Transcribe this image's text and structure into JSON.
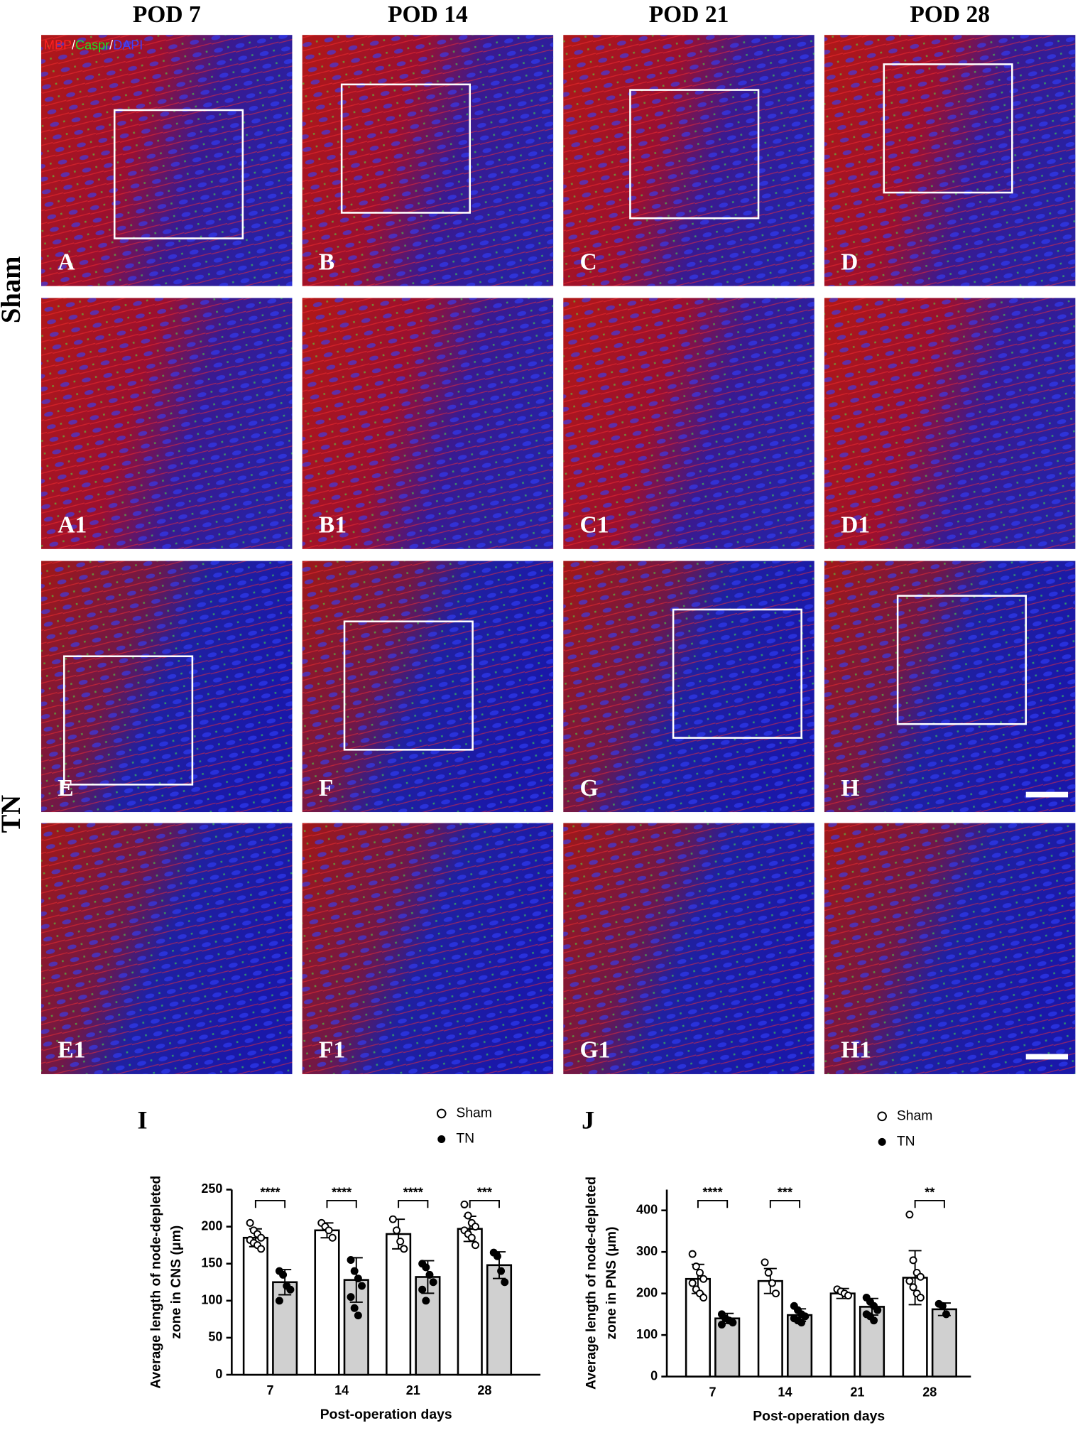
{
  "figure": {
    "column_headers": [
      "POD 7",
      "POD 14",
      "POD 21",
      "POD 28"
    ],
    "row_labels": [
      "Sham",
      "TN"
    ],
    "stain_labels": [
      "MBP",
      "/",
      "Caspr",
      "/",
      "DAPI"
    ],
    "stain_colors": [
      "#ff2020",
      "#ffffff",
      "#20e020",
      "#ffffff",
      "#4040ff"
    ],
    "panel_labels": [
      [
        "A",
        "B",
        "C",
        "D"
      ],
      [
        "A1",
        "B1",
        "C1",
        "D1"
      ],
      [
        "E",
        "F",
        "G",
        "H"
      ],
      [
        "E1",
        "F1",
        "G1",
        "H1"
      ]
    ]
  },
  "chart_data": [
    {
      "type": "bar",
      "panel": "I",
      "ylabel": [
        "Average length of node-depleted",
        "zone in CNS  (μm)"
      ],
      "xlabel": "Post-operation  days",
      "categories": [
        "7",
        "14",
        "21",
        "28"
      ],
      "series": [
        {
          "name": "Sham",
          "color": "#ffffff",
          "values": [
            185,
            195,
            190,
            197
          ],
          "errors": [
            12,
            10,
            20,
            17
          ],
          "points": [
            [
              205,
              195,
              190,
              185,
              182,
              178,
              175,
              170
            ],
            [
              205,
              200,
              195,
              185
            ],
            [
              210,
              195,
              180,
              170
            ],
            [
              230,
              215,
              205,
              200,
              195,
              190,
              185,
              175
            ]
          ]
        },
        {
          "name": "TN",
          "color": "#d0d0d0",
          "values": [
            125,
            128,
            132,
            148
          ],
          "errors": [
            17,
            30,
            22,
            18
          ],
          "points": [
            [
              140,
              135,
              120,
              115,
              100
            ],
            [
              155,
              140,
              130,
              120,
              105,
              90,
              80
            ],
            [
              150,
              145,
              135,
              125,
              115,
              100
            ],
            [
              165,
              160,
              140,
              125
            ]
          ]
        }
      ],
      "significance": [
        "****",
        "****",
        "****",
        "***"
      ],
      "ylim": [
        0,
        250
      ],
      "yticks": [
        0,
        50,
        100,
        150,
        200,
        250
      ]
    },
    {
      "type": "bar",
      "panel": "J",
      "ylabel": [
        "Average length of node-depleted",
        "zone in PNS  (μm)"
      ],
      "xlabel": "Post-operation  days",
      "categories": [
        "7",
        "14",
        "21",
        "28"
      ],
      "series": [
        {
          "name": "Sham",
          "color": "#ffffff",
          "values": [
            235,
            230,
            200,
            238
          ],
          "errors": [
            35,
            30,
            12,
            65
          ],
          "points": [
            [
              295,
              265,
              250,
              235,
              225,
              210,
              200,
              190
            ],
            [
              275,
              250,
              225,
              200
            ],
            [
              210,
              205,
              200,
              195
            ],
            [
              390,
              280,
              250,
              240,
              230,
              215,
              200,
              190
            ]
          ]
        },
        {
          "name": "TN",
          "color": "#d0d0d0",
          "values": [
            140,
            148,
            168,
            162
          ],
          "errors": [
            12,
            15,
            20,
            15
          ],
          "points": [
            [
              150,
              140,
              135,
              130,
              125
            ],
            [
              170,
              160,
              150,
              145,
              140,
              135,
              130
            ],
            [
              190,
              180,
              170,
              160,
              150,
              145,
              135
            ],
            [
              175,
              170,
              150
            ]
          ]
        }
      ],
      "significance": [
        "****",
        "***",
        null,
        "**"
      ],
      "ylim": [
        0,
        450
      ],
      "yticks": [
        0,
        100,
        200,
        300,
        400
      ]
    }
  ]
}
